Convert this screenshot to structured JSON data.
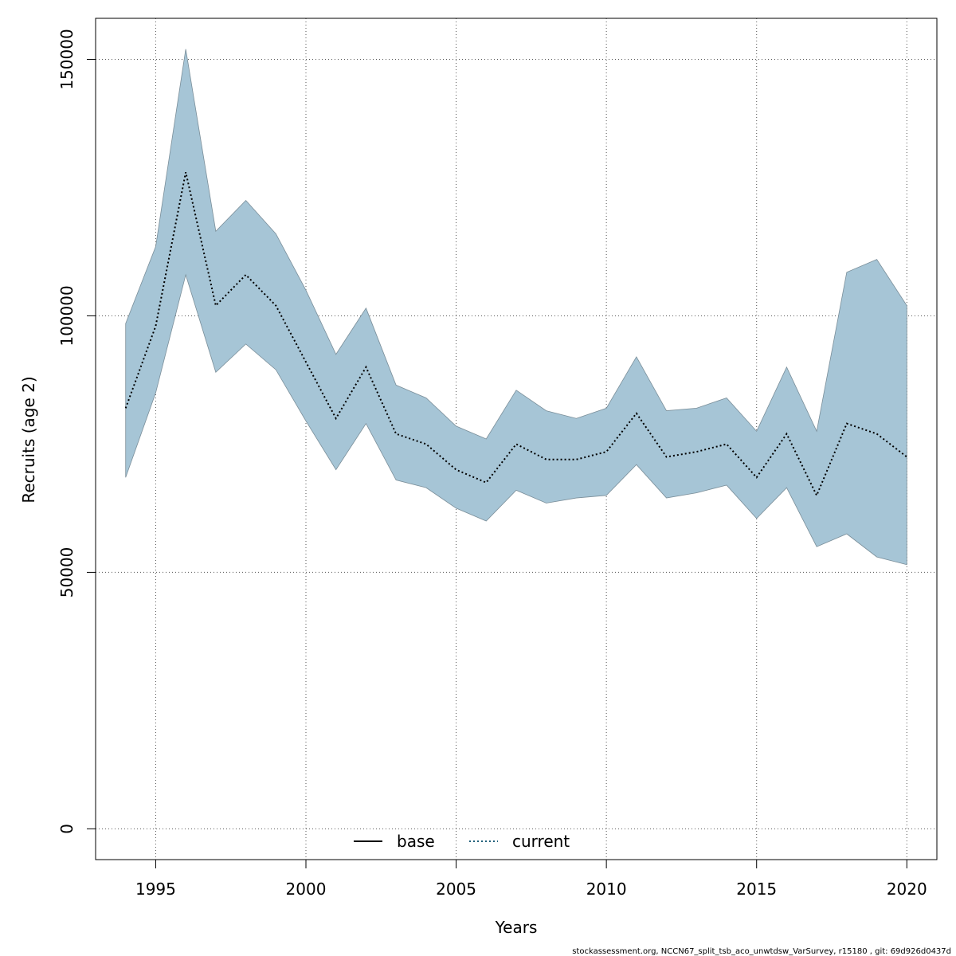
{
  "chart_data": {
    "type": "area",
    "title": "",
    "xlabel": "Years",
    "ylabel": "Recruits (age 2)",
    "xlim": [
      1993,
      2021
    ],
    "ylim": [
      -6000,
      158000
    ],
    "grid": true,
    "x_ticks": [
      1995,
      2000,
      2005,
      2010,
      2015,
      2020
    ],
    "x_tick_labels": [
      "1995",
      "2000",
      "2005",
      "2010",
      "2015",
      "2020"
    ],
    "y_ticks": [
      0,
      50000,
      100000,
      150000
    ],
    "y_tick_labels": [
      "0",
      "50000",
      "100000",
      "150000"
    ],
    "x": [
      1994,
      1995,
      1996,
      1997,
      1998,
      1999,
      2000,
      2001,
      2002,
      2003,
      2004,
      2005,
      2006,
      2007,
      2008,
      2009,
      2010,
      2011,
      2012,
      2013,
      2014,
      2015,
      2016,
      2017,
      2018,
      2019,
      2020
    ],
    "series": [
      {
        "name": "current",
        "style": "dotted",
        "values": [
          82000,
          98000,
          128000,
          102000,
          108000,
          102000,
          91000,
          80000,
          90000,
          77000,
          75000,
          70000,
          67500,
          75000,
          72000,
          72000,
          73500,
          81000,
          72500,
          73500,
          75000,
          68500,
          77000,
          65000,
          79000,
          77000,
          72500
        ]
      }
    ],
    "confidence_band": {
      "upper": [
        98500,
        113500,
        152000,
        116500,
        122500,
        116000,
        105000,
        92500,
        101500,
        86500,
        84000,
        78500,
        76000,
        85500,
        81500,
        80000,
        82000,
        92000,
        81500,
        82000,
        84000,
        77500,
        90000,
        77500,
        108500,
        111000,
        102000
      ],
      "lower": [
        68500,
        85000,
        108000,
        89000,
        94500,
        89500,
        79500,
        70000,
        79000,
        68000,
        66500,
        62500,
        60000,
        66000,
        63500,
        64500,
        65000,
        71000,
        64500,
        65500,
        67000,
        60500,
        66500,
        55000,
        57500,
        53000,
        51500
      ]
    },
    "legend": {
      "position": "bottom-center",
      "entries": [
        {
          "label": "base",
          "style": "solid"
        },
        {
          "label": "current",
          "style": "dotted"
        }
      ]
    },
    "footer": "stockassessment.org, NCCN67_split_tsb_aco_unwtdsw_VarSurvey, r15180 , git: 69d926d0437d"
  },
  "colors": {
    "band_fill": "#a6c5d6",
    "band_stroke": "#7a8e99",
    "line": "#000000",
    "current_legend": "#1f5f7a",
    "grid": "#555555"
  }
}
